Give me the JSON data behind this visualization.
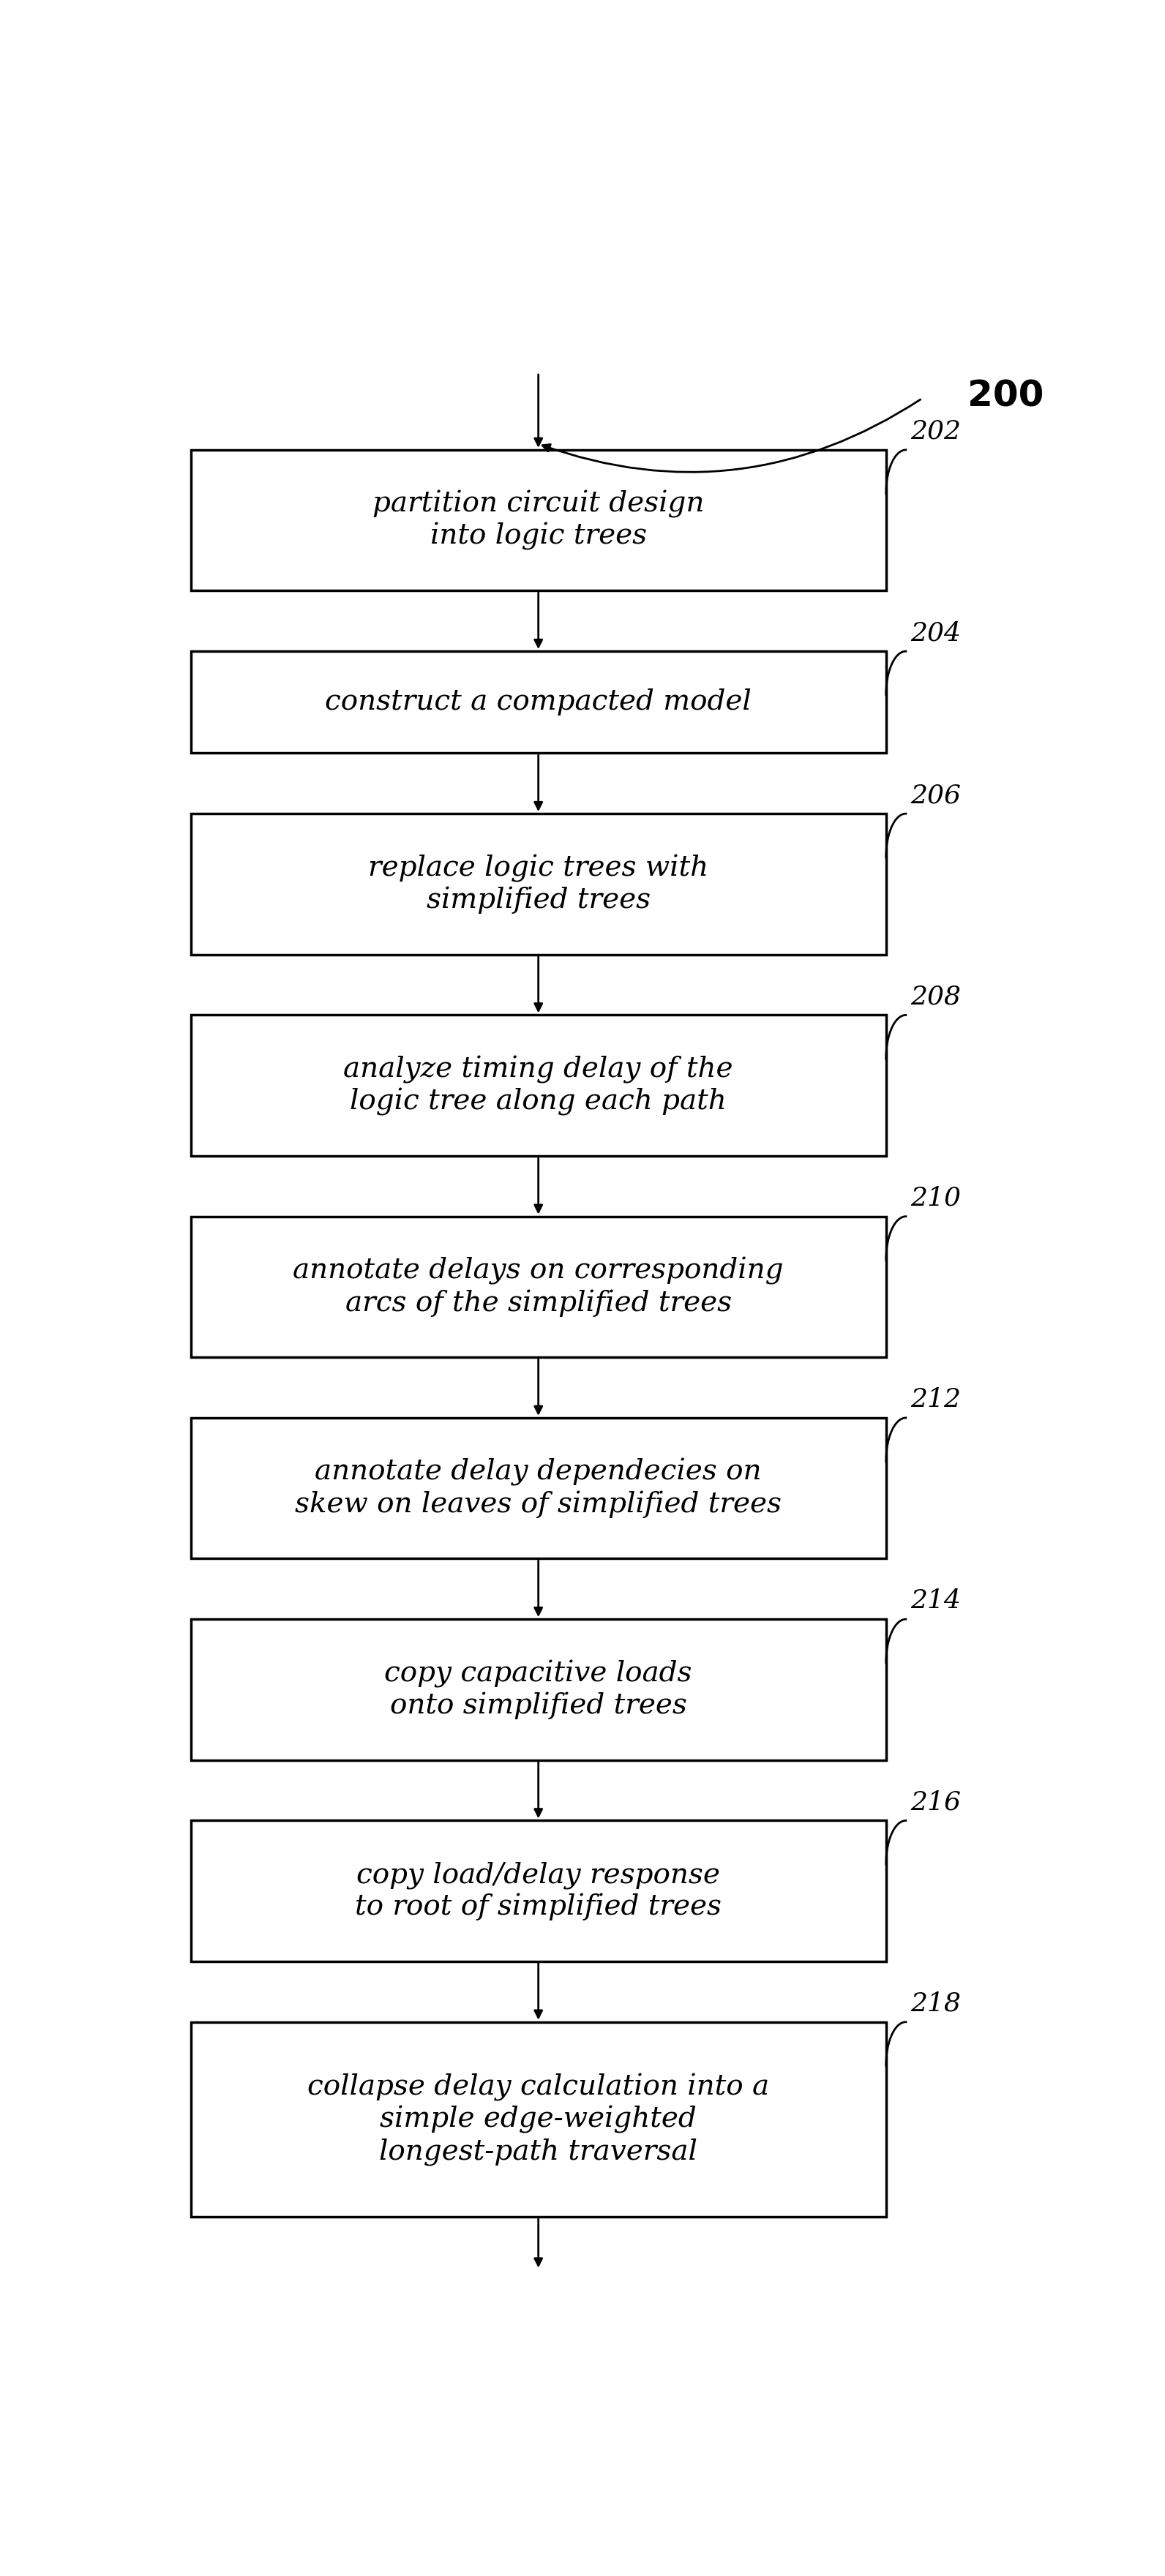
{
  "figure_label": "200",
  "boxes": [
    {
      "id": 202,
      "label": "partition circuit design\ninto logic trees",
      "lines": 2
    },
    {
      "id": 204,
      "label": "construct a compacted model",
      "lines": 1
    },
    {
      "id": 206,
      "label": "replace logic trees with\nsimplified trees",
      "lines": 2
    },
    {
      "id": 208,
      "label": "analyze timing delay of the\nlogic tree along each path",
      "lines": 2
    },
    {
      "id": 210,
      "label": "annotate delays on corresponding\narcs of the simplified trees",
      "lines": 2
    },
    {
      "id": 212,
      "label": "annotate delay dependecies on\nskew on leaves of simplified trees",
      "lines": 2
    },
    {
      "id": 214,
      "label": "copy capacitive loads\nonto simplified trees",
      "lines": 2
    },
    {
      "id": 216,
      "label": "copy load/delay response\nto root of simplified trees",
      "lines": 2
    },
    {
      "id": 218,
      "label": "collapse delay calculation into a\nsimple edge-weighted\nlongest-path traversal",
      "lines": 3
    }
  ],
  "box_color": "#ffffff",
  "box_edge_color": "#000000",
  "text_color": "#000000",
  "arrow_color": "#000000",
  "background_color": "#ffffff",
  "font_size": 28,
  "label_font_size": 26,
  "fig_label_font_size": 36,
  "fig_width": 15.92,
  "fig_height": 35.21
}
